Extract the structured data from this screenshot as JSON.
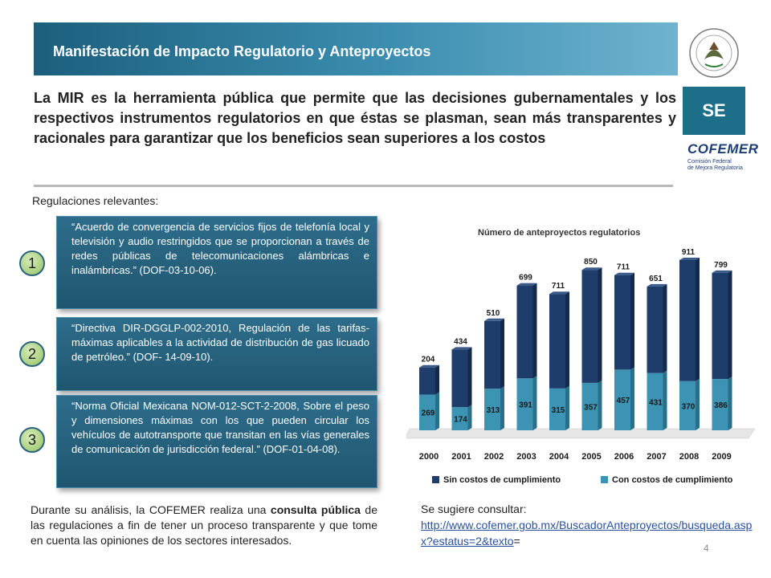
{
  "header": {
    "title": "Manifestación de Impacto Regulatorio y Anteproyectos"
  },
  "logos": {
    "se": "SE",
    "cofemer": "COFEMER",
    "cofemer_sub_1": "Comisión Federal",
    "cofemer_sub_2": "de Mejora Regulatoria"
  },
  "intro": "La MIR es la herramienta pública que permite que las decisiones gubernamentales y los respectivos instrumentos regulatorios en que éstas se plasman, sean más transparentes y racionales para garantizar que los beneficios sean superiores a los costos",
  "relevant_label": "Regulaciones relevantes:",
  "regulations": [
    {
      "num": "1",
      "text": "“Acuerdo de convergencia de servicios fijos de telefonía local y televisión y audio restringidos que se proporcionan a través de redes públicas de telecomunicaciones alámbricas e inalámbricas.” (DOF-03-10-06)."
    },
    {
      "num": "2",
      "text": "“Directiva DIR-DGGLP-002-2010, Regulación de las tarifas-máximas aplicables a la actividad de distribución de gas licuado de petróleo.” (DOF- 14-09-10)."
    },
    {
      "num": "3",
      "text": "“Norma Oficial Mexicana NOM-012-SCT-2-2008, Sobre el peso y dimensiones máximas con los que pueden circular los vehículos de autotransporte que transitan en las vías generales de comunicación de jurisdicción federal.” (DOF-01-04-08)."
    }
  ],
  "analysis": {
    "part1": "Durante su análisis, la COFEMER realiza una ",
    "bold": "consulta pública",
    "part2": " de las regulaciones a fin de tener un proceso transparente y que tome en cuenta las opiniones de los sectores interesados."
  },
  "suggest": {
    "label": "Se sugiere consultar:",
    "link": "http://www.cofemer.gob.mx/BuscadorAnteproyectos/busqueda.aspx?estatus=2&texto",
    "suffix": "="
  },
  "page_number": "4",
  "colors": {
    "dark_series": "#1f3d6b",
    "light_series": "#3d93b3",
    "header": "#2a7797"
  },
  "chart_data": {
    "type": "bar",
    "stacked": true,
    "title": "Número de anteproyectos regulatorios",
    "categories": [
      "2000",
      "2001",
      "2002",
      "2003",
      "2004",
      "2005",
      "2006",
      "2007",
      "2008",
      "2009"
    ],
    "series": [
      {
        "name": "Con costos de cumplimiento",
        "values": [
          269,
          174,
          313,
          391,
          315,
          357,
          457,
          431,
          370,
          386
        ],
        "color": "#3d93b3"
      },
      {
        "name": "Sin costos de cumplimiento",
        "values": [
          204,
          434,
          510,
          699,
          711,
          850,
          711,
          651,
          911,
          799
        ],
        "color": "#1f3d6b"
      }
    ],
    "legend_position": "bottom",
    "grid": false
  }
}
